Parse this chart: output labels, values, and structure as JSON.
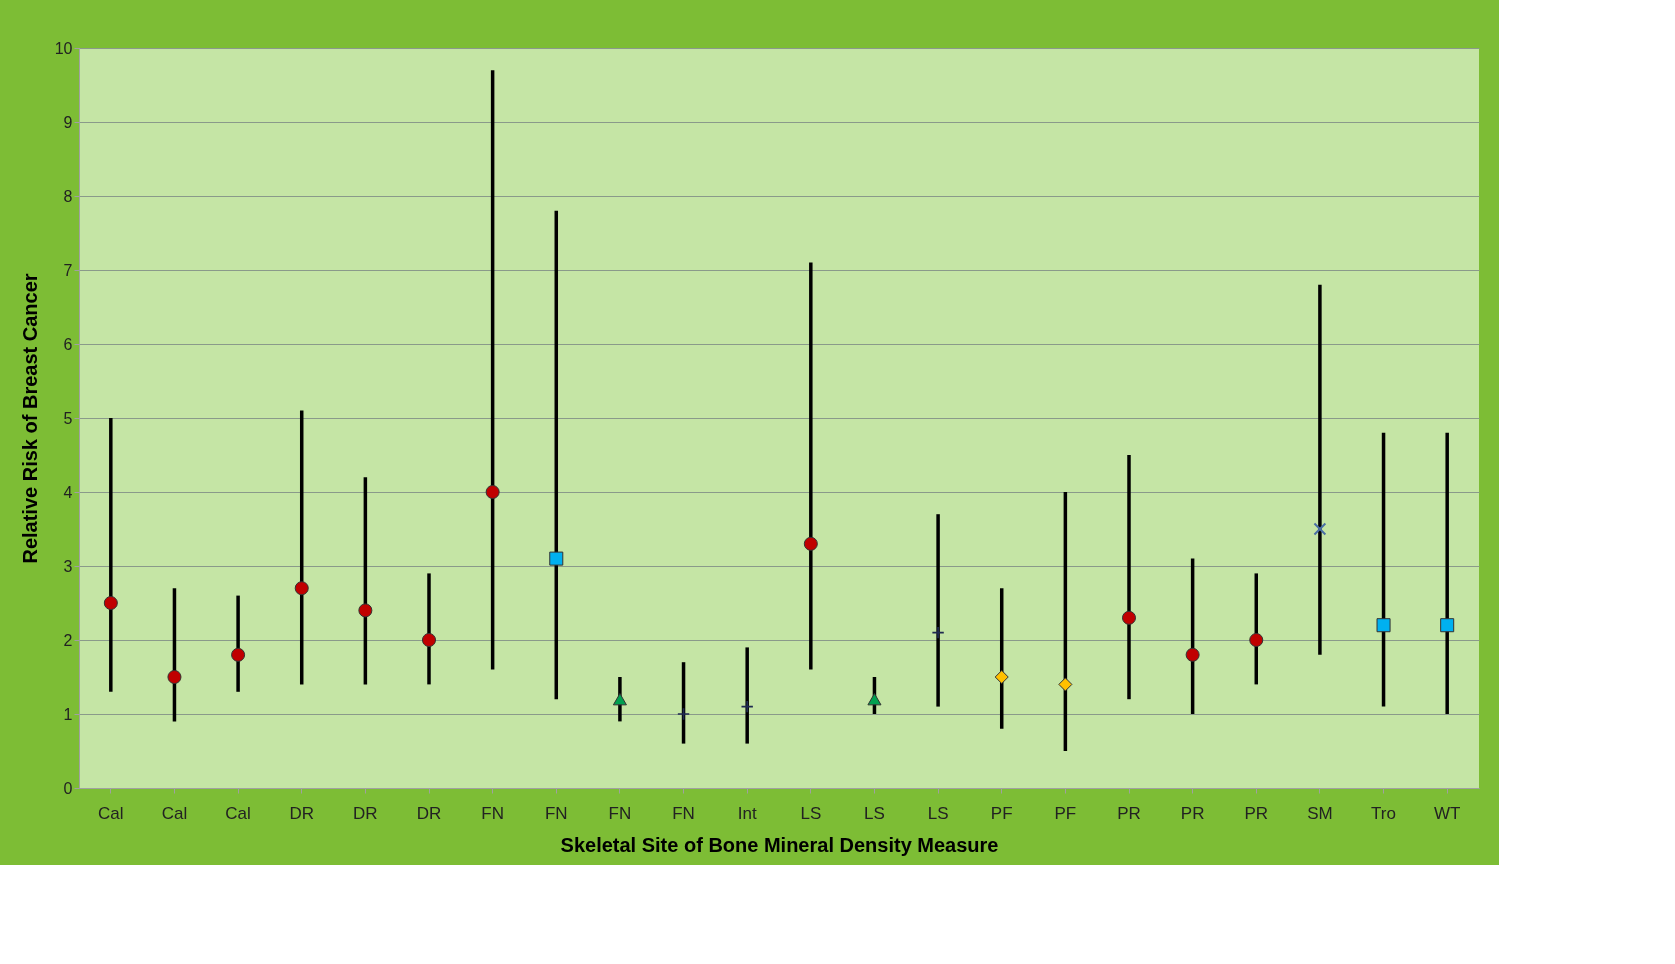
{
  "chart_data": {
    "type": "scatter",
    "xlabel": "Skeletal Site of Bone Mineral Density Measure",
    "ylabel": "Relative Risk of Breast Cancer",
    "categories": [
      "Cal",
      "Cal",
      "Cal",
      "DR",
      "DR",
      "DR",
      "FN",
      "FN",
      "FN",
      "FN",
      "Int",
      "LS",
      "LS",
      "LS",
      "PF",
      "PF",
      "PR",
      "PR",
      "PR",
      "SM",
      "Tro",
      "WT"
    ],
    "ylim": [
      0,
      10
    ],
    "yticks": [
      0,
      1,
      2,
      3,
      4,
      5,
      6,
      7,
      8,
      9,
      10
    ],
    "grid": "y",
    "legend": false,
    "series": [
      {
        "color": "#c00000",
        "marker": "circle",
        "values": [
          2.5,
          1.5,
          1.8,
          2.7,
          2.4,
          2.0,
          4.0,
          null,
          null,
          null,
          null,
          3.3,
          null,
          null,
          null,
          null,
          2.3,
          1.8,
          2.0,
          null,
          null,
          null
        ],
        "errors": [
          [
            1.3,
            5.0
          ],
          [
            0.9,
            2.7
          ],
          [
            1.3,
            2.6
          ],
          [
            1.4,
            5.1
          ],
          [
            1.4,
            4.2
          ],
          [
            1.4,
            2.9
          ],
          [
            1.6,
            9.7
          ],
          null,
          null,
          null,
          null,
          [
            1.6,
            7.1
          ],
          null,
          null,
          null,
          null,
          [
            1.2,
            4.5
          ],
          [
            1.0,
            3.1
          ],
          [
            1.4,
            2.9
          ],
          null,
          null,
          null
        ]
      },
      {
        "color": "#00b0f0",
        "marker": "square",
        "values": [
          null,
          null,
          null,
          null,
          null,
          null,
          null,
          3.1,
          null,
          null,
          null,
          null,
          null,
          null,
          null,
          null,
          null,
          null,
          null,
          null,
          2.2,
          2.2
        ],
        "errors": [
          null,
          null,
          null,
          null,
          null,
          null,
          null,
          [
            1.2,
            7.8
          ],
          null,
          null,
          null,
          null,
          null,
          null,
          null,
          null,
          null,
          null,
          null,
          null,
          [
            1.1,
            4.8
          ],
          [
            1.0,
            4.8
          ]
        ]
      },
      {
        "color": "#00a050",
        "marker": "triangle",
        "values": [
          null,
          null,
          null,
          null,
          null,
          null,
          null,
          null,
          1.2,
          null,
          null,
          null,
          1.2,
          null,
          null,
          null,
          null,
          null,
          null,
          null,
          null,
          null
        ],
        "errors": [
          null,
          null,
          null,
          null,
          null,
          null,
          null,
          null,
          [
            0.9,
            1.5
          ],
          null,
          null,
          null,
          [
            1.0,
            1.5
          ],
          null,
          null,
          null,
          null,
          null,
          null,
          null,
          null,
          null
        ]
      },
      {
        "color": "#1f2a50",
        "marker": "cross",
        "values": [
          null,
          null,
          null,
          null,
          null,
          null,
          null,
          null,
          null,
          1.0,
          1.1,
          null,
          null,
          2.1,
          null,
          null,
          null,
          null,
          null,
          null,
          null,
          null
        ],
        "errors": [
          null,
          null,
          null,
          null,
          null,
          null,
          null,
          null,
          null,
          [
            0.6,
            1.7
          ],
          [
            0.6,
            1.9
          ],
          null,
          null,
          [
            1.1,
            3.7
          ],
          null,
          null,
          null,
          null,
          null,
          null,
          null,
          null
        ]
      },
      {
        "color": "#ffc000",
        "marker": "diamond",
        "values": [
          null,
          null,
          null,
          null,
          null,
          null,
          null,
          null,
          null,
          null,
          null,
          null,
          null,
          null,
          1.5,
          1.4,
          null,
          null,
          null,
          null,
          null,
          null
        ],
        "errors": [
          null,
          null,
          null,
          null,
          null,
          null,
          null,
          null,
          null,
          null,
          null,
          null,
          null,
          null,
          [
            0.8,
            2.7
          ],
          [
            0.5,
            4.0
          ],
          null,
          null,
          null,
          null,
          null,
          null
        ]
      },
      {
        "color": "#4a6fa5",
        "marker": "x",
        "values": [
          null,
          null,
          null,
          null,
          null,
          null,
          null,
          null,
          null,
          null,
          null,
          null,
          null,
          null,
          null,
          null,
          null,
          null,
          null,
          3.5,
          null,
          null
        ],
        "errors": [
          null,
          null,
          null,
          null,
          null,
          null,
          null,
          null,
          null,
          null,
          null,
          null,
          null,
          null,
          null,
          null,
          null,
          null,
          null,
          [
            1.8,
            6.8
          ],
          null,
          null
        ]
      }
    ]
  }
}
